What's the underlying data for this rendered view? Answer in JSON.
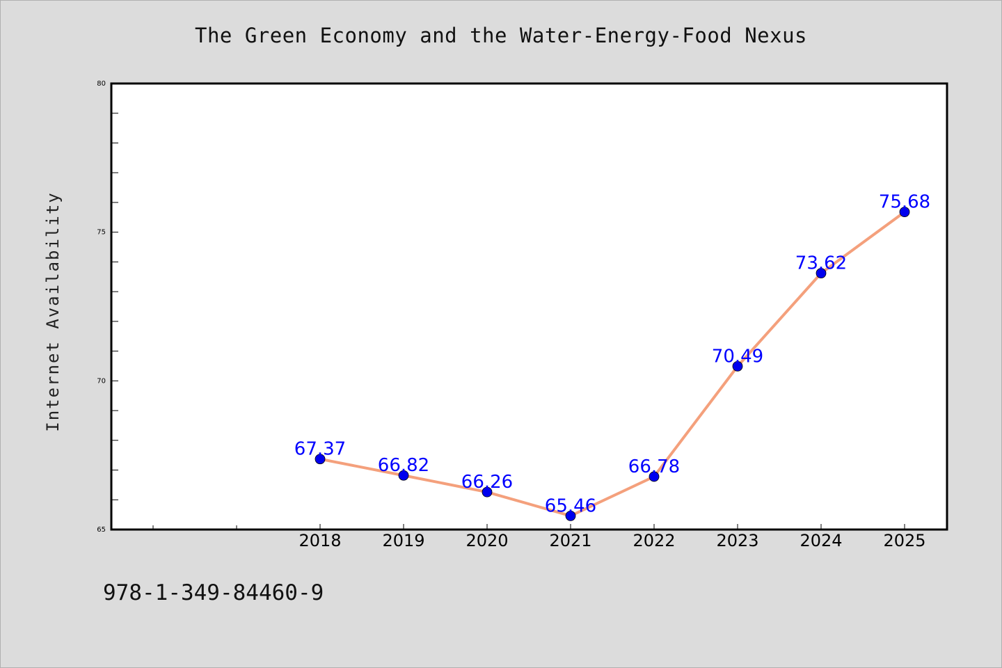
{
  "title": "The Green Economy and the Water-Energy-Food Nexus",
  "footer_text": "978-1-349-84460-9",
  "colors": {
    "background": "#dcdcdc",
    "plot_background": "#ffffff",
    "line": "#f4a07c",
    "marker": "#0000ee",
    "data_label": "#0000ff"
  },
  "chart_data": {
    "type": "line",
    "title": "The Green Economy and the Water-Energy-Food Nexus",
    "xlabel": "",
    "ylabel": "Internet Availability",
    "categories": [
      "2018",
      "2019",
      "2020",
      "2021",
      "2022",
      "2023",
      "2024",
      "2025"
    ],
    "series": [
      {
        "values": [
          67.37,
          66.82,
          66.26,
          65.46,
          66.78,
          70.49,
          73.62,
          75.68
        ],
        "labels": [
          "67.37",
          "66.82",
          "66.26",
          "65.46",
          "66.78",
          "70.49",
          "73.62",
          "75.68"
        ]
      }
    ],
    "ylim": [
      65,
      80
    ],
    "y_ticks": [
      "65",
      "70",
      "75",
      "80"
    ],
    "grid": false,
    "legend": "none"
  }
}
